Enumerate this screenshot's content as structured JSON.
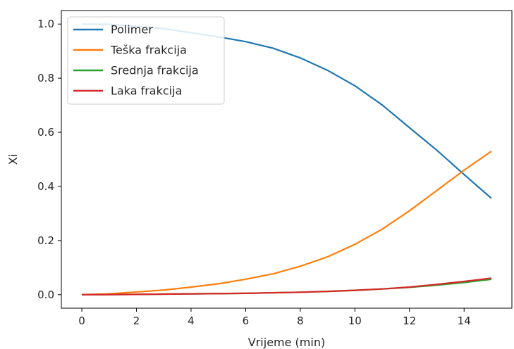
{
  "chart_data": {
    "type": "line",
    "title": "",
    "xlabel": "Vrijeme (min)",
    "ylabel": "Xi",
    "xlim": [
      -0.75,
      15.75
    ],
    "ylim": [
      -0.05,
      1.05
    ],
    "xticks": [
      0,
      2,
      4,
      6,
      8,
      10,
      12,
      14
    ],
    "yticks": [
      0.0,
      0.2,
      0.4,
      0.6,
      0.8,
      1.0
    ],
    "xtick_labels": [
      "0",
      "2",
      "4",
      "6",
      "8",
      "10",
      "12",
      "14"
    ],
    "ytick_labels": [
      "0.0",
      "0.2",
      "0.4",
      "0.6",
      "0.8",
      "1.0"
    ],
    "grid": false,
    "legend_position": "top-left",
    "x": [
      0,
      1,
      2,
      3,
      4,
      5,
      6,
      7,
      8,
      9,
      10,
      11,
      12,
      13,
      14,
      15
    ],
    "series": [
      {
        "name": "Polimer",
        "color": "#1f77b4",
        "values": [
          1.0,
          0.999,
          0.992,
          0.983,
          0.968,
          0.953,
          0.935,
          0.911,
          0.875,
          0.829,
          0.772,
          0.701,
          0.617,
          0.534,
          0.444,
          0.356
        ]
      },
      {
        "name": "Teška frakcija",
        "color": "#ff7f0e",
        "values": [
          0.0,
          0.003,
          0.01,
          0.017,
          0.028,
          0.04,
          0.057,
          0.077,
          0.105,
          0.14,
          0.186,
          0.242,
          0.31,
          0.385,
          0.46,
          0.53
        ]
      },
      {
        "name": "Srednja frakcija",
        "color": "#2ca02c",
        "values": [
          0.0,
          0.0004,
          0.001,
          0.002,
          0.003,
          0.004,
          0.005,
          0.007,
          0.009,
          0.012,
          0.016,
          0.021,
          0.027,
          0.035,
          0.045,
          0.057
        ]
      },
      {
        "name": "Laka frakcija",
        "color": "#d62728",
        "values": [
          0.0,
          0.0004,
          0.001,
          0.002,
          0.003,
          0.004,
          0.005,
          0.007,
          0.009,
          0.012,
          0.016,
          0.021,
          0.028,
          0.038,
          0.049,
          0.061
        ]
      }
    ]
  }
}
